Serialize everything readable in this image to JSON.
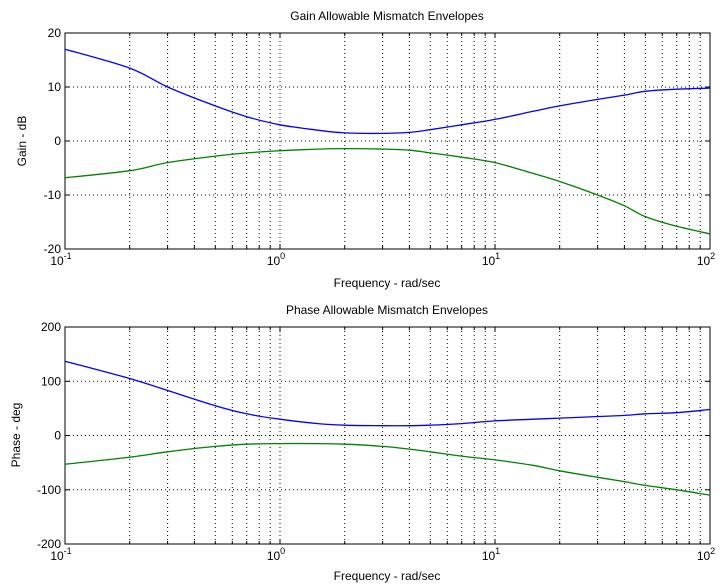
{
  "chart_data": [
    {
      "type": "line",
      "title": "Gain Allowable Mismatch Envelopes",
      "xlabel": "Frequency - rad/sec",
      "ylabel": "Gain - dB",
      "xscale": "log",
      "xlim": [
        0.1,
        100
      ],
      "ylim": [
        -20,
        20
      ],
      "grid": true,
      "x_ticks": [
        {
          "base": "10",
          "exp": "-1"
        },
        {
          "base": "10",
          "exp": "0"
        },
        {
          "base": "10",
          "exp": "1"
        },
        {
          "base": "10",
          "exp": "2"
        }
      ],
      "y_ticks": [
        "-20",
        "-10",
        "0",
        "10",
        "20"
      ],
      "x": [
        0.1,
        0.2,
        0.3,
        0.5,
        0.7,
        1,
        1.5,
        2,
        3,
        4,
        5,
        7,
        10,
        15,
        20,
        30,
        40,
        50,
        70,
        100
      ],
      "series": [
        {
          "color": "#0000ff",
          "values": [
            17,
            13.5,
            10,
            6.5,
            4.5,
            3,
            2,
            1.5,
            1.4,
            1.6,
            2.1,
            3,
            4,
            5.5,
            6.5,
            7.7,
            8.5,
            9.2,
            9.6,
            9.8
          ]
        },
        {
          "color": "#008000",
          "values": [
            -6.8,
            -5.5,
            -4,
            -2.8,
            -2.2,
            -1.8,
            -1.5,
            -1.4,
            -1.5,
            -1.7,
            -2.2,
            -3,
            -4,
            -6,
            -7.5,
            -10,
            -12,
            -14,
            -15.8,
            -17.2
          ]
        }
      ]
    },
    {
      "type": "line",
      "title": "Phase Allowable Mismatch Envelopes",
      "xlabel": "Frequency - rad/sec",
      "ylabel": "Phase - deg",
      "xscale": "log",
      "xlim": [
        0.1,
        100
      ],
      "ylim": [
        -200,
        200
      ],
      "grid": true,
      "x_ticks": [
        {
          "base": "10",
          "exp": "-1"
        },
        {
          "base": "10",
          "exp": "0"
        },
        {
          "base": "10",
          "exp": "1"
        },
        {
          "base": "10",
          "exp": "2"
        }
      ],
      "y_ticks": [
        "-200",
        "-100",
        "0",
        "100",
        "200"
      ],
      "x": [
        0.1,
        0.2,
        0.3,
        0.5,
        0.7,
        1,
        1.5,
        2,
        3,
        4,
        5,
        7,
        10,
        15,
        20,
        30,
        40,
        50,
        70,
        100
      ],
      "series": [
        {
          "color": "#0000ff",
          "values": [
            137,
            105,
            83,
            55,
            40,
            30,
            22,
            19,
            18,
            18,
            19,
            22,
            27,
            30,
            32,
            35,
            37,
            40,
            42,
            48
          ]
        },
        {
          "color": "#008000",
          "values": [
            -53,
            -40,
            -30,
            -20,
            -16,
            -15,
            -15,
            -16,
            -20,
            -25,
            -30,
            -38,
            -45,
            -55,
            -65,
            -77,
            -85,
            -92,
            -100,
            -110
          ]
        }
      ]
    }
  ]
}
